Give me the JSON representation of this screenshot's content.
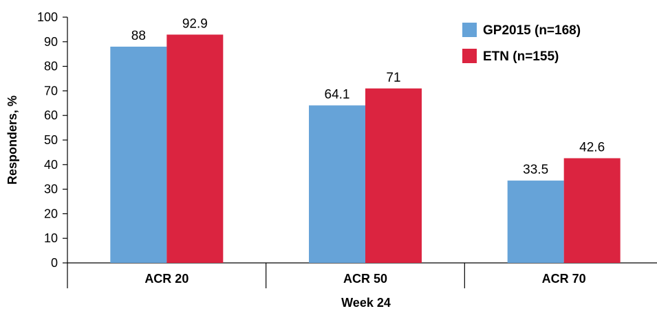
{
  "chart_data": {
    "type": "bar",
    "categories": [
      "ACR 20",
      "ACR 50",
      "ACR 70"
    ],
    "series": [
      {
        "name": "GP2015 (n=168)",
        "values": [
          88,
          64.1,
          33.5
        ],
        "labels": [
          "88",
          "64.1",
          "33.5"
        ],
        "color": "#66a3d8"
      },
      {
        "name": "ETN (n=155)",
        "values": [
          92.9,
          71,
          42.6
        ],
        "labels": [
          "92.9",
          "71",
          "42.6"
        ],
        "color": "#db2440"
      }
    ],
    "xlabel": "Week 24",
    "ylabel": "Responders, %",
    "ylim": [
      0,
      100
    ],
    "yticks": [
      0,
      10,
      20,
      30,
      40,
      50,
      60,
      70,
      80,
      90,
      100
    ],
    "grid": false,
    "legend": "top-right"
  }
}
